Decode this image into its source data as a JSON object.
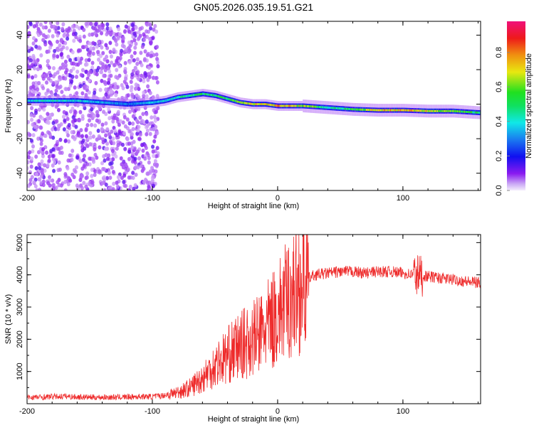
{
  "chart_data": [
    {
      "type": "heatmap",
      "title": "GN05.2026.035.19.51.G21",
      "xlabel": "Height of straight line (km)",
      "ylabel": "Frequency (Hz)",
      "xlim": [
        -200,
        162
      ],
      "ylim": [
        -50,
        48
      ],
      "xticks": [
        -200,
        -100,
        0,
        100
      ],
      "yticks": [
        -40,
        -20,
        0,
        20,
        40
      ],
      "colorbar": {
        "label": "Normalized spectral amplitude",
        "range": [
          0,
          1
        ],
        "ticks": [
          "0.0",
          "0.2",
          "0.4",
          "0.6",
          "0.8"
        ]
      },
      "ridge": {
        "height_km": [
          -200,
          -180,
          -160,
          -140,
          -120,
          -100,
          -90,
          -80,
          -70,
          -60,
          -50,
          -45,
          -40,
          -30,
          -20,
          -10,
          0,
          20,
          40,
          60,
          80,
          100,
          120,
          140,
          162
        ],
        "frequency_hz": [
          2,
          2,
          2,
          1,
          0,
          1,
          2,
          4,
          5,
          6,
          5,
          4,
          3,
          1,
          0,
          0,
          -1,
          -1,
          -2,
          -3,
          -3.5,
          -3.5,
          -4,
          -4,
          -5
        ],
        "amplitude": [
          0.4,
          0.45,
          0.4,
          0.35,
          0.3,
          0.4,
          0.4,
          0.45,
          0.5,
          0.5,
          0.5,
          0.55,
          0.5,
          0.7,
          0.75,
          0.75,
          0.8,
          0.7,
          0.45,
          0.55,
          0.75,
          0.8,
          0.7,
          0.6,
          0.5
        ]
      },
      "noise_region_km": [
        -200,
        -95
      ]
    },
    {
      "type": "line",
      "xlabel": "Height of straight line (km)",
      "ylabel": "SNR (10 * v/v)",
      "xlim": [
        -200,
        162
      ],
      "ylim": [
        0,
        5250
      ],
      "xticks": [
        -200,
        -100,
        0,
        100
      ],
      "yticks": [
        1000,
        2000,
        3000,
        4000,
        5000
      ],
      "color": "#ee2a2a",
      "x": [
        -200,
        -190,
        -180,
        -170,
        -160,
        -150,
        -140,
        -130,
        -120,
        -110,
        -100,
        -90,
        -80,
        -70,
        -60,
        -50,
        -40,
        -30,
        -20,
        -10,
        0,
        10,
        20,
        30,
        40,
        50,
        60,
        70,
        80,
        90,
        100,
        110,
        120,
        130,
        140,
        150,
        160
      ],
      "y": [
        200,
        200,
        220,
        230,
        210,
        200,
        200,
        200,
        210,
        220,
        220,
        260,
        350,
        500,
        800,
        1200,
        1500,
        1800,
        2000,
        2300,
        2800,
        3300,
        3800,
        4000,
        4050,
        4100,
        4100,
        4050,
        4100,
        4100,
        4050,
        4000,
        3950,
        3900,
        3850,
        3800,
        3750
      ]
    }
  ]
}
